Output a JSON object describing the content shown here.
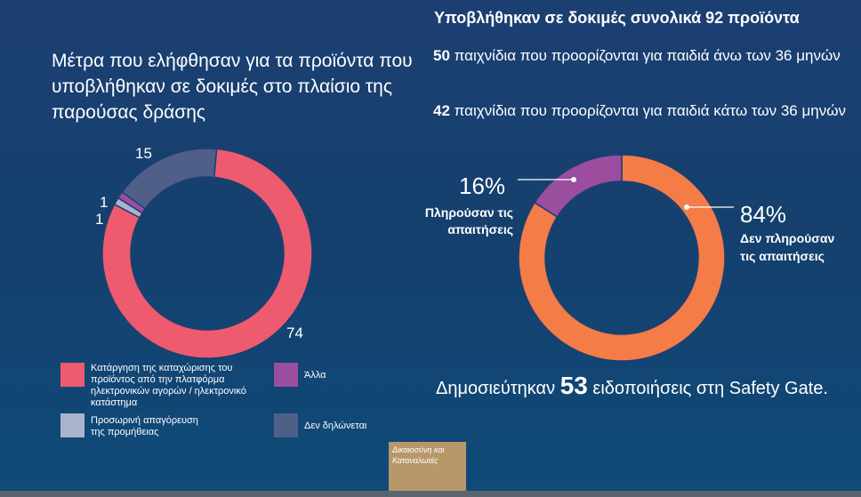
{
  "left_title": "Μέτρα που ελήφθησαν για τα προϊόντα που υποβλήθηκαν σε δοκιμές στο πλαίσιο της παρούσας δράσης",
  "right_title": "Υποβλήθηκαν σε δοκιμές συνολικά 92 προϊόντα",
  "stats": [
    {
      "number": "50",
      "text": "παιχνίδια που προορίζονται για παιδιά άνω των 36 μηνών"
    },
    {
      "number": "42",
      "text": "παιχνίδια που προορίζονται για παιδιά κάτω των 36 μηνών"
    }
  ],
  "notice": {
    "prefix": "Δημοσιεύτηκαν",
    "number": "53",
    "suffix": "ειδοποιήσεις στη Safety Gate."
  },
  "logo_text": "Δικαιοσύνη και Καταναλωτές",
  "chart_data": [
    {
      "type": "pie",
      "donut": true,
      "categories": [
        "Κατάργηση της καταχώρισης του προϊόντος από την πλατφόρμα ηλεκτρονικών αγορών / ηλεκτρονικό κατάστημα",
        "Άλλα",
        "Προσωρινή απαγόρευση της προμήθειας",
        "Δεν δηλώνεται"
      ],
      "values": [
        74,
        1,
        1,
        15
      ],
      "value_labels": [
        "74",
        "1",
        "1",
        "15"
      ],
      "colors": [
        "#ef5b6e",
        "#9b4d9e",
        "#a9b4cc",
        "#4f5f88"
      ],
      "legend_placement": "bottom"
    },
    {
      "type": "pie",
      "donut": true,
      "categories": [
        "Δεν πληρούσαν τις απαιτήσεις",
        "Πληρούσαν τις απαιτήσεις"
      ],
      "values": [
        84,
        16
      ],
      "value_labels": [
        "84%",
        "16%"
      ],
      "colors": [
        "#f47c47",
        "#9b4d9e"
      ],
      "legend_placement": "callouts"
    }
  ]
}
